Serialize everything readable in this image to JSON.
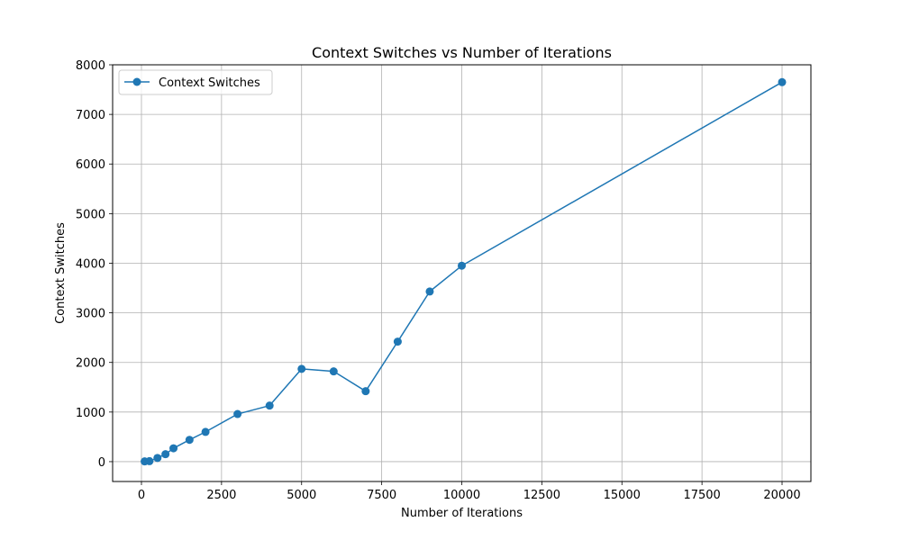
{
  "chart_data": {
    "type": "line",
    "title": "Context Switches vs Number of Iterations",
    "xlabel": "Number of Iterations",
    "ylabel": "Context Switches",
    "xlim": [
      -900,
      20900
    ],
    "ylim": [
      -400,
      8000
    ],
    "x_ticks": [
      0,
      2500,
      5000,
      7500,
      10000,
      12500,
      15000,
      17500,
      20000
    ],
    "y_ticks": [
      0,
      1000,
      2000,
      3000,
      4000,
      5000,
      6000,
      7000,
      8000
    ],
    "grid": true,
    "legend_position": "upper-left",
    "series": [
      {
        "name": "Context Switches",
        "color": "#1f77b4",
        "marker": "circle",
        "x": [
          100,
          250,
          500,
          750,
          1000,
          1500,
          2000,
          3000,
          4000,
          5000,
          6000,
          7000,
          8000,
          9000,
          10000,
          20000
        ],
        "y": [
          5,
          10,
          75,
          150,
          270,
          440,
          600,
          960,
          1130,
          1870,
          1820,
          1420,
          2420,
          3430,
          3950,
          7650
        ]
      }
    ]
  }
}
